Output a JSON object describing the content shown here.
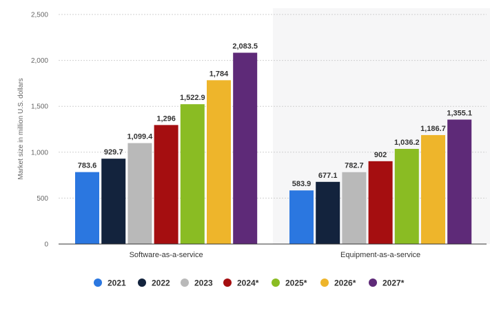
{
  "chart_data": {
    "type": "bar",
    "title": "",
    "xlabel": "",
    "ylabel": "Market size in million U.S. dollars",
    "ylim": [
      0,
      2500
    ],
    "yticks": [
      0,
      500,
      1000,
      1500,
      2000,
      2500
    ],
    "ytick_labels": [
      "0",
      "500",
      "1,000",
      "1,500",
      "2,000",
      "2,500"
    ],
    "grid": true,
    "legend_position": "bottom-center",
    "categories": [
      "Software-as-a-service",
      "Equipment-as-a-service"
    ],
    "series": [
      {
        "name": "2021",
        "color": "#2b77e0",
        "values": [
          783.6,
          583.9
        ],
        "labels": [
          "783.6",
          "583.9"
        ]
      },
      {
        "name": "2022",
        "color": "#13233d",
        "values": [
          929.7,
          677.1
        ],
        "labels": [
          "929.7",
          "677.1"
        ]
      },
      {
        "name": "2023",
        "color": "#b9b9b9",
        "values": [
          1099.4,
          782.7
        ],
        "labels": [
          "1,099.4",
          "782.7"
        ]
      },
      {
        "name": "2024*",
        "color": "#a50e10",
        "values": [
          1296,
          902
        ],
        "labels": [
          "1,296",
          "902"
        ]
      },
      {
        "name": "2025*",
        "color": "#8abc23",
        "values": [
          1522.9,
          1036.2
        ],
        "labels": [
          "1,522.9",
          "1,036.2"
        ]
      },
      {
        "name": "2026*",
        "color": "#eeb52b",
        "values": [
          1784,
          1186.7
        ],
        "labels": [
          "1,784",
          "1,186.7"
        ]
      },
      {
        "name": "2027*",
        "color": "#5e2a78",
        "values": [
          2083.5,
          1355.1
        ],
        "labels": [
          "2,083.5",
          "1,355.1"
        ]
      }
    ]
  }
}
